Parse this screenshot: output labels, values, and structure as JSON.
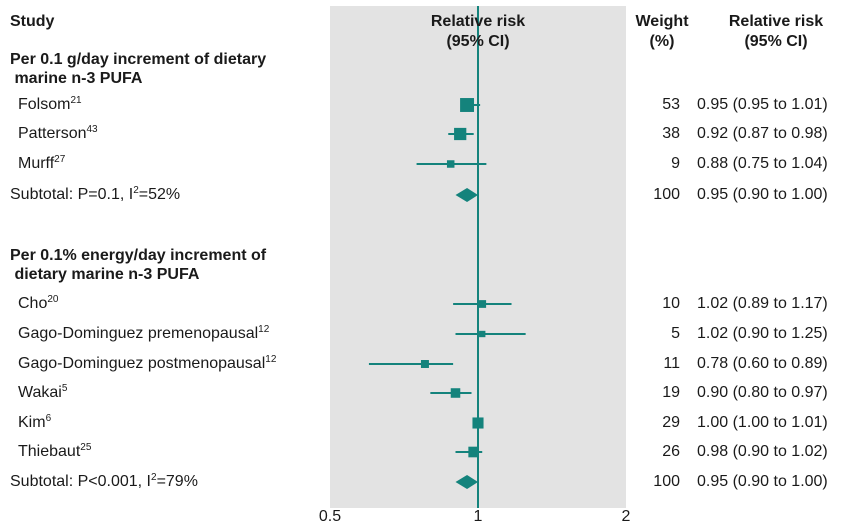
{
  "headers": {
    "study": "Study",
    "rr_line1": "Relative risk",
    "rr_line2": "(95% CI)",
    "weight_line1": "Weight",
    "weight_line2": "(%)",
    "rr2_line1": "Relative risk",
    "rr2_line2": "(95% CI)"
  },
  "groups": [
    {
      "title_line1": "Per 0.1 g/day increment of dietary",
      "title_line2": " marine n-3 PUFA"
    },
    {
      "title_line1": "Per 0.1% energy/day increment of",
      "title_line2": " dietary marine n-3 PUFA"
    }
  ],
  "rows": [
    {
      "name": "Folsom",
      "ref": "21",
      "weight": "53",
      "ci_text": "0.95 (0.95 to 1.01)"
    },
    {
      "name": "Patterson",
      "ref": "43",
      "weight": "38",
      "ci_text": "0.92 (0.87 to 0.98)"
    },
    {
      "name": "Murff",
      "ref": "27",
      "weight": "9",
      "ci_text": "0.88 (0.75 to 1.04)"
    },
    {
      "name": "Subtotal: P=0.1, I",
      "ref": "2",
      "suffix": "=52%",
      "weight": "100",
      "ci_text": "0.95 (0.90 to 1.00)"
    },
    {
      "name": "Cho",
      "ref": "20",
      "weight": "10",
      "ci_text": "1.02 (0.89 to 1.17)"
    },
    {
      "name": "Gago-Dominguez premenopausal",
      "ref": "12",
      "weight": "5",
      "ci_text": "1.02 (0.90 to 1.25)"
    },
    {
      "name": "Gago-Dominguez postmenopausal",
      "ref": "12",
      "weight": "11",
      "ci_text": "0.78 (0.60 to 0.89)"
    },
    {
      "name": "Wakai",
      "ref": "5",
      "weight": "19",
      "ci_text": "0.90 (0.80 to 0.97)"
    },
    {
      "name": "Kim",
      "ref": "6",
      "weight": "29",
      "ci_text": "1.00 (1.00 to 1.01)"
    },
    {
      "name": "Thiebaut",
      "ref": "25",
      "weight": "26",
      "ci_text": "0.98 (0.90 to 1.02)"
    },
    {
      "name": "Subtotal: P<0.001, I",
      "ref": "2",
      "suffix": "=79%",
      "weight": "100",
      "ci_text": "0.95 (0.90 to 1.00)"
    }
  ],
  "colors": {
    "marker": "#14837c",
    "panel": "#e3e3e3"
  },
  "chart_data": {
    "type": "forest",
    "x_scale": "log",
    "xlim": [
      0.5,
      2
    ],
    "x_ticks": [
      "0.5",
      "1",
      "2"
    ],
    "reference_line": 1,
    "series": [
      {
        "study": "Folsom",
        "estimate": 0.95,
        "lower": 0.95,
        "upper": 1.01,
        "weight": 53,
        "kind": "study"
      },
      {
        "study": "Patterson",
        "estimate": 0.92,
        "lower": 0.87,
        "upper": 0.98,
        "weight": 38,
        "kind": "study"
      },
      {
        "study": "Murff",
        "estimate": 0.88,
        "lower": 0.75,
        "upper": 1.04,
        "weight": 9,
        "kind": "study"
      },
      {
        "study": "Subtotal: P=0.1, I2=52%",
        "estimate": 0.95,
        "lower": 0.9,
        "upper": 1.0,
        "weight": 100,
        "kind": "subtotal"
      },
      {
        "study": "Cho",
        "estimate": 1.02,
        "lower": 0.89,
        "upper": 1.17,
        "weight": 10,
        "kind": "study"
      },
      {
        "study": "Gago-Dominguez premenopausal",
        "estimate": 1.02,
        "lower": 0.9,
        "upper": 1.25,
        "weight": 5,
        "kind": "study"
      },
      {
        "study": "Gago-Dominguez postmenopausal",
        "estimate": 0.78,
        "lower": 0.6,
        "upper": 0.89,
        "weight": 11,
        "kind": "study"
      },
      {
        "study": "Wakai",
        "estimate": 0.9,
        "lower": 0.8,
        "upper": 0.97,
        "weight": 19,
        "kind": "study"
      },
      {
        "study": "Kim",
        "estimate": 1.0,
        "lower": 1.0,
        "upper": 1.01,
        "weight": 29,
        "kind": "study"
      },
      {
        "study": "Thiebaut",
        "estimate": 0.98,
        "lower": 0.9,
        "upper": 1.02,
        "weight": 26,
        "kind": "study"
      },
      {
        "study": "Subtotal: P<0.001, I2=79%",
        "estimate": 0.95,
        "lower": 0.9,
        "upper": 1.0,
        "weight": 100,
        "kind": "subtotal"
      }
    ]
  }
}
